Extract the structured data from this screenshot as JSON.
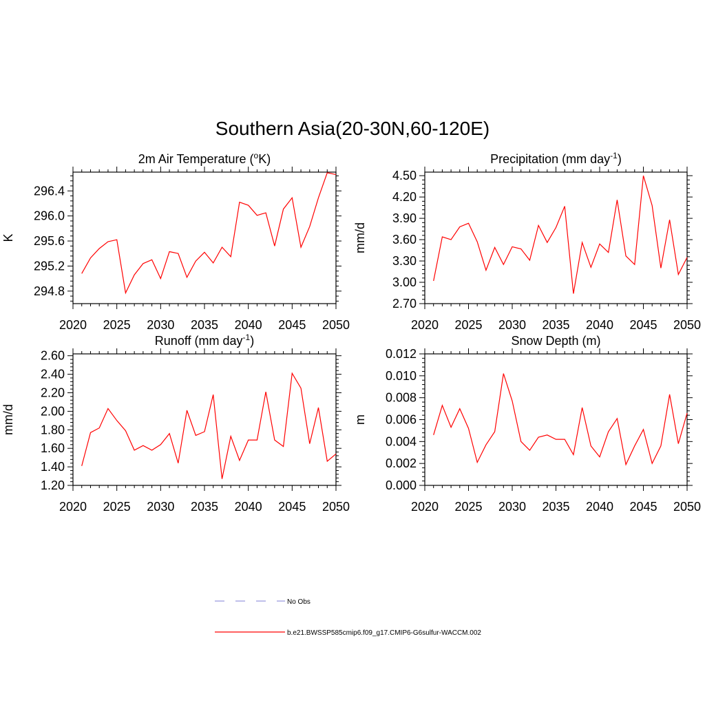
{
  "figure": {
    "title": "Southern Asia(20-30N,60-120E)"
  },
  "legend": {
    "entries": [
      {
        "label": "No Obs",
        "color": "#9999dd",
        "style": "dashed"
      },
      {
        "label": "b.e21.BWSSP585cmip6.f09_g17.CMIP6-G6sulfur-WACCM.002",
        "color": "#ff0000",
        "style": "solid"
      }
    ]
  },
  "chart_data": [
    {
      "type": "line",
      "title": "2m Air Temperature (°K)",
      "title_main": "2m Air Temperature (",
      "title_sup": "o",
      "title_end": "K)",
      "ylabel": "K",
      "xlim": [
        2020,
        2050
      ],
      "ylim": [
        294.6,
        296.7
      ],
      "xticks": [
        2020,
        2025,
        2030,
        2035,
        2040,
        2045,
        2050
      ],
      "yticks": [
        294.8,
        295.2,
        295.6,
        296.0,
        296.4
      ],
      "ytick_labels": [
        "294.8",
        "295.2",
        "295.6",
        "296.0",
        "296.4"
      ],
      "x": [
        2021,
        2022,
        2023,
        2024,
        2025,
        2026,
        2027,
        2028,
        2029,
        2030,
        2031,
        2032,
        2033,
        2034,
        2035,
        2036,
        2037,
        2038,
        2039,
        2040,
        2041,
        2042,
        2043,
        2044,
        2045,
        2046,
        2047,
        2048,
        2049,
        2050
      ],
      "series": [
        {
          "name": "b.e21.BWSSP585cmip6.f09_g17.CMIP6-G6sulfur-WACCM.002",
          "color": "#ff0000",
          "values": [
            295.08,
            295.33,
            295.48,
            295.59,
            295.62,
            294.77,
            295.06,
            295.24,
            295.3,
            295.0,
            295.43,
            295.4,
            295.02,
            295.28,
            295.42,
            295.25,
            295.5,
            295.35,
            296.22,
            296.17,
            296.01,
            296.05,
            295.52,
            296.11,
            296.29,
            295.5,
            295.83,
            296.29,
            296.69,
            296.66
          ]
        }
      ]
    },
    {
      "type": "line",
      "title": "Precipitation (mm day-1)",
      "title_main": "Precipitation (mm day",
      "title_sup": "-1",
      "title_end": ")",
      "ylabel": "mm/d",
      "xlim": [
        2020,
        2050
      ],
      "ylim": [
        2.7,
        4.55
      ],
      "xticks": [
        2020,
        2025,
        2030,
        2035,
        2040,
        2045,
        2050
      ],
      "yticks": [
        2.7,
        3.0,
        3.3,
        3.6,
        3.9,
        4.2,
        4.5
      ],
      "ytick_labels": [
        "2.70",
        "3.00",
        "3.30",
        "3.60",
        "3.90",
        "4.20",
        "4.50"
      ],
      "x": [
        2021,
        2022,
        2023,
        2024,
        2025,
        2026,
        2027,
        2028,
        2029,
        2030,
        2031,
        2032,
        2033,
        2034,
        2035,
        2036,
        2037,
        2038,
        2039,
        2040,
        2041,
        2042,
        2043,
        2044,
        2045,
        2046,
        2047,
        2048,
        2049,
        2050
      ],
      "series": [
        {
          "name": "b.e21.BWSSP585cmip6.f09_g17.CMIP6-G6sulfur-WACCM.002",
          "color": "#ff0000",
          "values": [
            3.02,
            3.64,
            3.6,
            3.78,
            3.83,
            3.57,
            3.17,
            3.49,
            3.25,
            3.5,
            3.47,
            3.31,
            3.8,
            3.56,
            3.77,
            4.07,
            2.84,
            3.56,
            3.21,
            3.54,
            3.42,
            4.16,
            3.37,
            3.25,
            4.5,
            4.08,
            3.2,
            3.88,
            3.11,
            3.35
          ]
        }
      ]
    },
    {
      "type": "line",
      "title": "Runoff (mm day-1)",
      "title_main": "Runoff (mm day",
      "title_sup": "-1",
      "title_end": ")",
      "ylabel": "mm/d",
      "xlim": [
        2020,
        2050
      ],
      "ylim": [
        1.2,
        2.62
      ],
      "xticks": [
        2020,
        2025,
        2030,
        2035,
        2040,
        2045,
        2050
      ],
      "yticks": [
        1.2,
        1.4,
        1.6,
        1.8,
        2.0,
        2.2,
        2.4,
        2.6
      ],
      "ytick_labels": [
        "1.20",
        "1.40",
        "1.60",
        "1.80",
        "2.00",
        "2.20",
        "2.40",
        "2.60"
      ],
      "x": [
        2021,
        2022,
        2023,
        2024,
        2025,
        2026,
        2027,
        2028,
        2029,
        2030,
        2031,
        2032,
        2033,
        2034,
        2035,
        2036,
        2037,
        2038,
        2039,
        2040,
        2041,
        2042,
        2043,
        2044,
        2045,
        2046,
        2047,
        2048,
        2049,
        2050
      ],
      "series": [
        {
          "name": "b.e21.BWSSP585cmip6.f09_g17.CMIP6-G6sulfur-WACCM.002",
          "color": "#ff0000",
          "values": [
            1.41,
            1.77,
            1.82,
            2.03,
            1.9,
            1.79,
            1.58,
            1.63,
            1.58,
            1.64,
            1.76,
            1.44,
            2.01,
            1.74,
            1.78,
            2.18,
            1.27,
            1.73,
            1.47,
            1.69,
            1.69,
            2.21,
            1.69,
            1.62,
            2.41,
            2.25,
            1.65,
            2.04,
            1.46,
            1.54
          ]
        }
      ]
    },
    {
      "type": "line",
      "title": "Snow Depth (m)",
      "title_main": "Snow Depth (m)",
      "title_sup": "",
      "title_end": "",
      "ylabel": "m",
      "xlim": [
        2020,
        2050
      ],
      "ylim": [
        0.0,
        0.012
      ],
      "xticks": [
        2020,
        2025,
        2030,
        2035,
        2040,
        2045,
        2050
      ],
      "yticks": [
        0.0,
        0.002,
        0.004,
        0.006,
        0.008,
        0.01,
        0.012
      ],
      "ytick_labels": [
        "0.000",
        "0.002",
        "0.004",
        "0.006",
        "0.008",
        "0.010",
        "0.012"
      ],
      "x": [
        2021,
        2022,
        2023,
        2024,
        2025,
        2026,
        2027,
        2028,
        2029,
        2030,
        2031,
        2032,
        2033,
        2034,
        2035,
        2036,
        2037,
        2038,
        2039,
        2040,
        2041,
        2042,
        2043,
        2044,
        2045,
        2046,
        2047,
        2048,
        2049,
        2050
      ],
      "series": [
        {
          "name": "b.e21.BWSSP585cmip6.f09_g17.CMIP6-G6sulfur-WACCM.002",
          "color": "#ff0000",
          "values": [
            0.0046,
            0.0073,
            0.0053,
            0.007,
            0.0052,
            0.0021,
            0.0037,
            0.0049,
            0.0102,
            0.0077,
            0.004,
            0.0032,
            0.0044,
            0.0046,
            0.0042,
            0.0042,
            0.0028,
            0.0071,
            0.0036,
            0.0026,
            0.0049,
            0.0061,
            0.0019,
            0.0036,
            0.0051,
            0.002,
            0.0036,
            0.0083,
            0.0038,
            0.0066
          ]
        }
      ]
    }
  ]
}
